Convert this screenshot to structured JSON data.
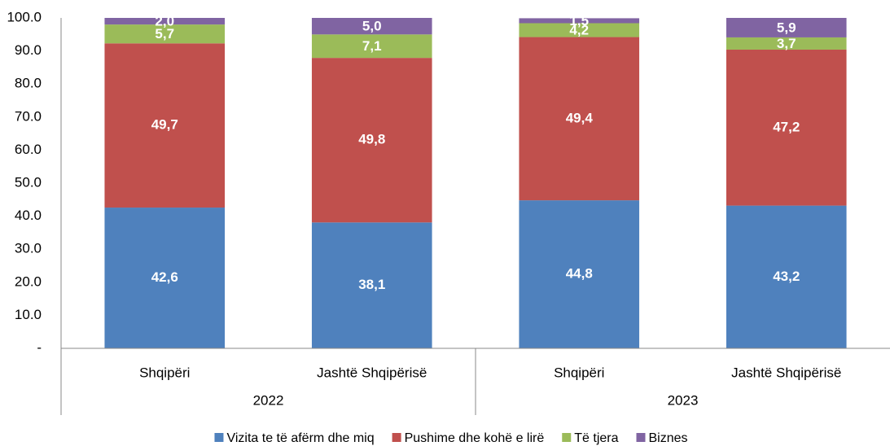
{
  "chart_data": {
    "type": "stacked_bar",
    "categories": [
      "Shqipëri",
      "Jashtë Shqipërisë",
      "Shqipëri",
      "Jashtë Shqipërisë"
    ],
    "x_groups": [
      "2022",
      "2023"
    ],
    "series": [
      {
        "name": "Vizita te të afërm dhe miq",
        "color": "#4f81bd",
        "values": [
          42.6,
          38.1,
          44.8,
          43.2
        ],
        "value_labels": [
          "42,6",
          "38,1",
          "44,8",
          "43,2"
        ]
      },
      {
        "name": "Pushime dhe kohë e lirë",
        "color": "#c0504d",
        "values": [
          49.7,
          49.8,
          49.4,
          47.2
        ],
        "value_labels": [
          "49,7",
          "49,8",
          "49,4",
          "47,2"
        ]
      },
      {
        "name": "Të tjera",
        "color": "#9bbb59",
        "values": [
          5.7,
          7.1,
          4.2,
          3.7
        ],
        "value_labels": [
          "5,7",
          "7,1",
          "4,2",
          "3,7"
        ]
      },
      {
        "name": "Biznes",
        "color": "#8064a2",
        "values": [
          2.0,
          5.0,
          1.5,
          5.9
        ],
        "value_labels": [
          "2,0",
          "5,0",
          "1,5",
          "5,9"
        ]
      }
    ],
    "ylim": [
      0,
      100
    ],
    "yticks": [
      {
        "value": 0,
        "label": "-"
      },
      {
        "value": 10,
        "label": "10.0"
      },
      {
        "value": 20,
        "label": "20.0"
      },
      {
        "value": 30,
        "label": "30.0"
      },
      {
        "value": 40,
        "label": "40.0"
      },
      {
        "value": 50,
        "label": "50.0"
      },
      {
        "value": 60,
        "label": "60.0"
      },
      {
        "value": 70,
        "label": "70.0"
      },
      {
        "value": 80,
        "label": "80.0"
      },
      {
        "value": 90,
        "label": "90.0"
      },
      {
        "value": 100,
        "label": "100.0"
      }
    ],
    "legend": "bottom"
  }
}
